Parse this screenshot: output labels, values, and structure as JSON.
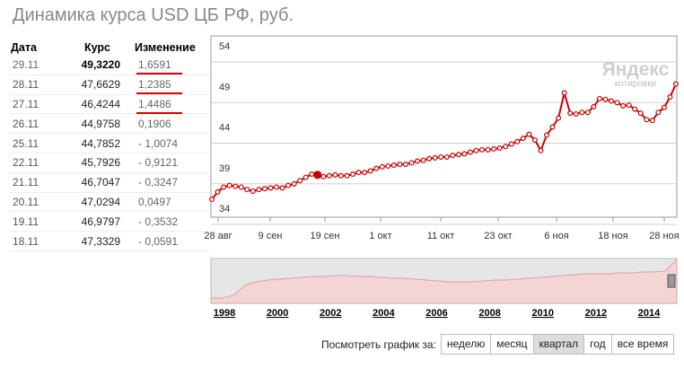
{
  "title": "Динамика курса USD ЦБ РФ, руб.",
  "table": {
    "headers": {
      "date": "Дата",
      "rate": "Курс",
      "change": "Изменение"
    },
    "rows": [
      {
        "date": "29.11",
        "rate": "49,3220",
        "change": "1,6591",
        "bold": true,
        "underline": true
      },
      {
        "date": "28.11",
        "rate": "47,6629",
        "change": "1,2385",
        "bold": false,
        "underline": true
      },
      {
        "date": "27.11",
        "rate": "46,4244",
        "change": "1,4486",
        "bold": false,
        "underline": true
      },
      {
        "date": "26.11",
        "rate": "44,9758",
        "change": "0,1906",
        "bold": false,
        "underline": false
      },
      {
        "date": "25.11",
        "rate": "44,7852",
        "change": "- 1,0074",
        "bold": false,
        "underline": false
      },
      {
        "date": "22.11",
        "rate": "45,7926",
        "change": "- 0,9121",
        "bold": false,
        "underline": false
      },
      {
        "date": "21.11",
        "rate": "46,7047",
        "change": "- 0,3247",
        "bold": false,
        "underline": false
      },
      {
        "date": "20.11",
        "rate": "47,0294",
        "change": "0,0497",
        "bold": false,
        "underline": false
      },
      {
        "date": "19.11",
        "rate": "46,9797",
        "change": "- 0,3532",
        "bold": false,
        "underline": false
      },
      {
        "date": "18.11",
        "rate": "47,3329",
        "change": "- 0,0591",
        "bold": false,
        "underline": false
      }
    ]
  },
  "logo": {
    "big": "Яндекс",
    "small": "котировки"
  },
  "period": {
    "label": "Посмотреть график за:",
    "options": [
      "неделю",
      "месяц",
      "квартал",
      "год",
      "все время"
    ],
    "active": "квартал"
  },
  "colors": {
    "line": "#cc0000",
    "grid": "#d0d0d0",
    "marker_fill": "#ffffff",
    "navigator_fill": "#f3d5d5",
    "navigator_bg": "#e6e6e6"
  },
  "chart_data": [
    {
      "type": "line",
      "ylim": [
        34,
        54
      ],
      "yticks": [
        "34",
        "39",
        "44",
        "49",
        "54"
      ],
      "xticks": [
        "28 авг",
        "9 сен",
        "19 сен",
        "1 окт",
        "11 окт",
        "23 окт",
        "6 ноя",
        "18 ноя",
        "28 ноя"
      ],
      "highlight_label": "19 сен",
      "series": [
        {
          "values": [
            35.1,
            36.0,
            36.6,
            36.8,
            36.7,
            36.6,
            36.3,
            36.1,
            36.3,
            36.4,
            36.5,
            36.6,
            36.5,
            36.8,
            37.0,
            37.4,
            37.8,
            38.2,
            38.1,
            37.9,
            38.0,
            38.1,
            38.0,
            38.0,
            38.2,
            38.4,
            38.4,
            38.6,
            38.9,
            39.1,
            39.2,
            39.3,
            39.4,
            39.4,
            39.6,
            39.8,
            39.9,
            40.1,
            40.2,
            40.3,
            40.3,
            40.5,
            40.6,
            40.7,
            40.9,
            41.1,
            41.2,
            41.2,
            41.3,
            41.4,
            41.6,
            41.9,
            42.2,
            42.6,
            43.1,
            42.4,
            41.1,
            43.0,
            44.0,
            45.1,
            48.2,
            45.7,
            45.6,
            45.8,
            45.8,
            46.5,
            47.5,
            47.4,
            47.2,
            47.0,
            46.6,
            46.7,
            46.2,
            45.7,
            44.9,
            44.8,
            45.8,
            46.4,
            47.7,
            49.3
          ]
        }
      ]
    },
    {
      "type": "area",
      "xticks": [
        "1998",
        "2000",
        "2002",
        "2004",
        "2006",
        "2008",
        "2010",
        "2012",
        "2014"
      ],
      "series": [
        {
          "values": [
            6,
            6,
            9,
            20,
            24,
            26,
            27,
            28,
            29,
            30,
            30,
            31,
            31,
            30,
            30,
            29,
            28,
            28,
            27,
            26,
            25,
            24,
            24,
            24,
            25,
            26,
            26,
            27,
            28,
            29,
            30,
            31,
            32,
            33,
            33,
            33,
            34,
            34,
            35,
            35,
            36,
            49
          ]
        }
      ]
    }
  ]
}
